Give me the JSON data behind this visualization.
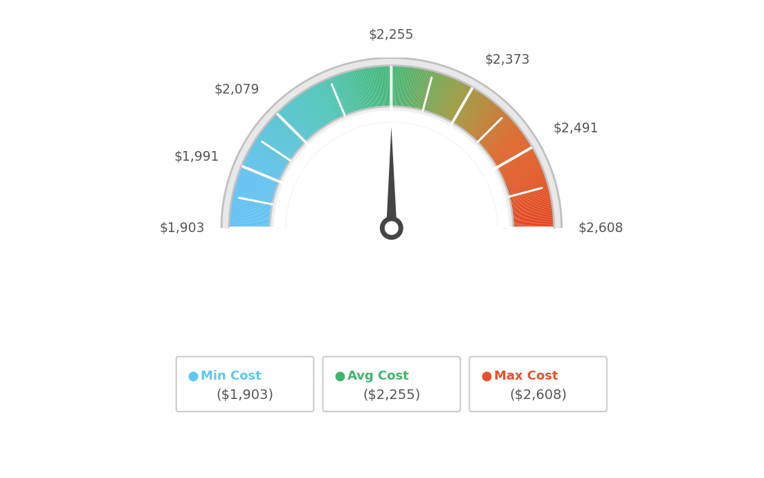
{
  "min_value": 1903,
  "avg_value": 2255,
  "max_value": 2608,
  "needle_value": 2255,
  "label_texts": [
    "$1,903",
    "$1,991",
    "$2,079",
    "$2,255",
    "$2,373",
    "$2,491",
    "$2,608"
  ],
  "label_values": [
    1903,
    1991,
    2079,
    2255,
    2373,
    2491,
    2608
  ],
  "min_color": "#5BC8F5",
  "avg_color": "#3DB768",
  "max_color": "#E8522A",
  "legend_labels": [
    "Min Cost",
    "Avg Cost",
    "Max Cost"
  ],
  "legend_values": [
    "($1,903)",
    "($2,255)",
    "($2,608)"
  ],
  "bg_color": "#FFFFFF",
  "label_color": "#555555",
  "needle_color": "#454545",
  "arc_outer_color": "#CCCCCC",
  "arc_inner_color": "#E0E0E0"
}
